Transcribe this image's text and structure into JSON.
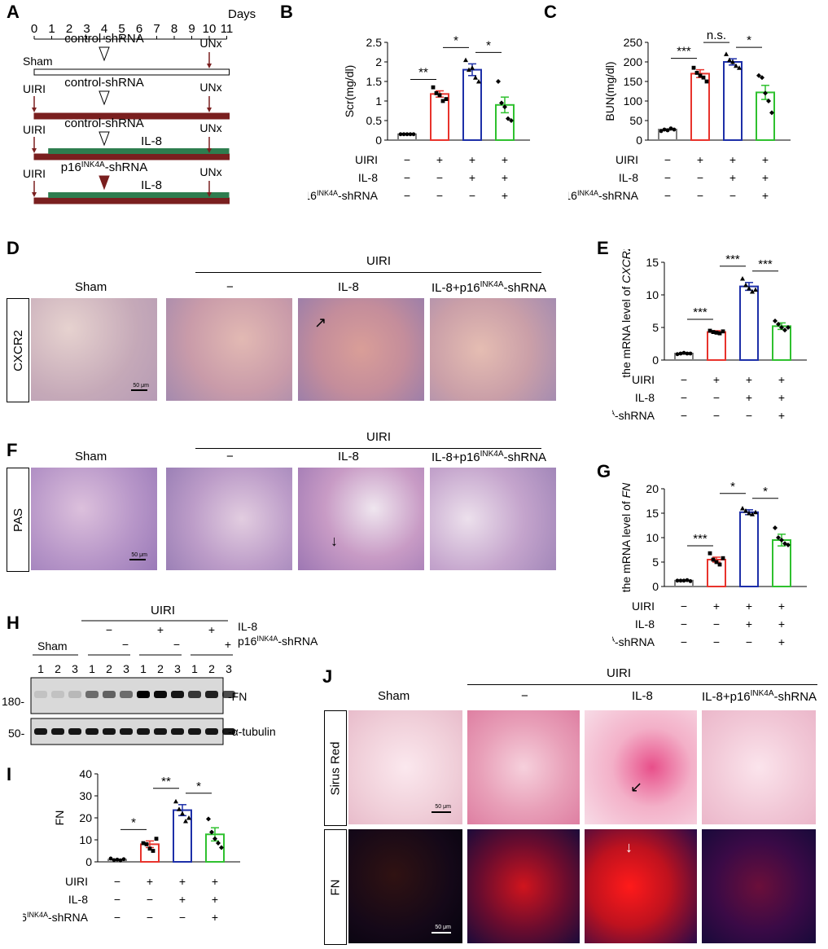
{
  "panels": {
    "A": {
      "letter": "A"
    },
    "B": {
      "letter": "B"
    },
    "C": {
      "letter": "C"
    },
    "D": {
      "letter": "D"
    },
    "E": {
      "letter": "E"
    },
    "F": {
      "letter": "F"
    },
    "G": {
      "letter": "G"
    },
    "H": {
      "letter": "H"
    },
    "I": {
      "letter": "I"
    },
    "J": {
      "letter": "J"
    }
  },
  "timeline": {
    "days_label": "Days",
    "ticks": [
      "0",
      "1",
      "2",
      "3",
      "4",
      "5",
      "6",
      "7",
      "8",
      "9",
      "10",
      "11"
    ],
    "rows": [
      {
        "left": "Sham",
        "mid": "control-shRNA",
        "right": "UNx",
        "extra": ""
      },
      {
        "left": "UIRI",
        "mid": "control-shRNA",
        "right": "UNx",
        "extra": ""
      },
      {
        "left": "UIRI",
        "mid": "control-shRNA",
        "right": "UNx",
        "extra": "IL-8"
      },
      {
        "left": "UIRI",
        "mid": "p16INK4A-shRNA",
        "right": "UNx",
        "extra": "IL-8"
      }
    ],
    "colors": {
      "maroon": "#7a1f1f",
      "green": "#2e7d4f",
      "white": "#ffffff"
    }
  },
  "conditions": {
    "row_labels": [
      "UIRI",
      "IL-8",
      "p16INK4A-shRNA"
    ],
    "signs": [
      [
        "−",
        "−",
        "−"
      ],
      [
        "+",
        "−",
        "−"
      ],
      [
        "+",
        "+",
        "−"
      ],
      [
        "+",
        "+",
        "+"
      ]
    ]
  },
  "series_colors": [
    "#7f7f7f",
    "#e8332c",
    "#1d2fa8",
    "#2fc12f"
  ],
  "chart_data": [
    {
      "id": "B",
      "type": "bar",
      "ylabel": "Scr(mg/dl)",
      "yticks": [
        "0",
        "0.5",
        "1",
        "1.5",
        "2",
        "2.5"
      ],
      "ylim": [
        0,
        2.5
      ],
      "values": [
        0.15,
        1.18,
        1.8,
        0.9
      ],
      "errors": [
        0.01,
        0.08,
        0.15,
        0.2
      ],
      "points": [
        [
          0.15,
          0.15,
          0.15,
          0.15,
          0.15
        ],
        [
          1.35,
          1.2,
          1.15,
          1.0,
          1.05
        ],
        [
          2.05,
          1.8,
          1.85,
          1.6,
          1.5
        ],
        [
          1.5,
          0.95,
          0.85,
          0.55,
          0.5
        ]
      ],
      "sig": [
        {
          "from": 0,
          "to": 1,
          "text": "**"
        },
        {
          "from": 1,
          "to": 2,
          "text": "*"
        },
        {
          "from": 2,
          "to": 3,
          "text": "*"
        }
      ]
    },
    {
      "id": "C",
      "type": "bar",
      "ylabel": "BUN(mg/dl)",
      "yticks": [
        "0",
        "50",
        "100",
        "150",
        "200",
        "250"
      ],
      "ylim": [
        0,
        250
      ],
      "values": [
        27,
        170,
        200,
        122
      ],
      "errors": [
        2,
        10,
        8,
        18
      ],
      "points": [
        [
          23,
          27,
          25,
          30,
          27
        ],
        [
          185,
          172,
          165,
          160,
          150
        ],
        [
          220,
          205,
          200,
          190,
          185
        ],
        [
          165,
          160,
          120,
          100,
          70
        ]
      ],
      "sig": [
        {
          "from": 0,
          "to": 1,
          "text": "***"
        },
        {
          "from": 1,
          "to": 2,
          "text": "n.s."
        },
        {
          "from": 2,
          "to": 3,
          "text": "*"
        }
      ]
    },
    {
      "id": "E",
      "type": "bar",
      "ylabel": "the mRNA level of CXCR2",
      "yticks": [
        "0",
        "5",
        "10",
        "15"
      ],
      "ylim": [
        0,
        15
      ],
      "values": [
        1.0,
        4.3,
        11.3,
        5.2
      ],
      "errors": [
        0.1,
        0.2,
        0.6,
        0.5
      ],
      "points": [
        [
          0.9,
          1.0,
          1.1,
          1.0,
          1.0
        ],
        [
          4.5,
          4.3,
          4.2,
          4.1,
          4.4
        ],
        [
          12.5,
          11.5,
          11.0,
          10.5,
          10.8
        ],
        [
          6.0,
          5.5,
          5.0,
          4.6,
          5.0
        ]
      ],
      "sig": [
        {
          "from": 0,
          "to": 1,
          "text": "***"
        },
        {
          "from": 1,
          "to": 2,
          "text": "***"
        },
        {
          "from": 2,
          "to": 3,
          "text": "***"
        }
      ]
    },
    {
      "id": "G",
      "type": "bar",
      "ylabel": "the mRNA level of FN",
      "yticks": [
        "0",
        "5",
        "10",
        "15",
        "20"
      ],
      "ylim": [
        0,
        20
      ],
      "values": [
        1.2,
        5.5,
        15.2,
        9.5
      ],
      "errors": [
        0.1,
        0.5,
        0.5,
        1.2
      ],
      "points": [
        [
          1.2,
          1.2,
          1.2,
          1.3,
          1.1
        ],
        [
          6.8,
          5.5,
          5.0,
          4.5,
          5.8
        ],
        [
          16.0,
          15.5,
          15.0,
          14.8,
          15.2
        ],
        [
          12.0,
          10.0,
          9.5,
          8.8,
          8.5
        ]
      ],
      "sig": [
        {
          "from": 0,
          "to": 1,
          "text": "***"
        },
        {
          "from": 1,
          "to": 2,
          "text": "*"
        },
        {
          "from": 2,
          "to": 3,
          "text": "*"
        }
      ]
    },
    {
      "id": "I",
      "type": "bar",
      "ylabel": "FN",
      "yticks": [
        "0",
        "10",
        "20",
        "30",
        "40"
      ],
      "ylim": [
        0,
        40
      ],
      "values": [
        1.0,
        8.0,
        23.5,
        12.5
      ],
      "errors": [
        0.2,
        1.5,
        2.5,
        3.0
      ],
      "points": [
        [
          1.5,
          0.8,
          1.0,
          0.7,
          1.2
        ],
        [
          8.5,
          8.0,
          6.0,
          5.0,
          10.5
        ],
        [
          27.5,
          24.0,
          22.0,
          18.5,
          20.0
        ],
        [
          19.5,
          13.5,
          10.5,
          8.5,
          6.5
        ]
      ],
      "sig": [
        {
          "from": 0,
          "to": 1,
          "text": "*"
        },
        {
          "from": 1,
          "to": 2,
          "text": "**"
        },
        {
          "from": 2,
          "to": 3,
          "text": "*"
        }
      ]
    }
  ],
  "histology": {
    "uiri": "UIRI",
    "groups": [
      "Sham",
      "−",
      "IL-8",
      "IL-8+p16INK4A-shRNA"
    ],
    "D_stain": "CXCR2",
    "F_stain": "PAS",
    "J_stains": [
      "Sirus Red",
      "FN"
    ],
    "scale_bar": "50 μm"
  },
  "blot": {
    "uiri": "UIRI",
    "sham": "Sham",
    "il8": "IL-8",
    "shrna": "p16INK4A-shRNA",
    "il8_signs": [
      "−",
      "+",
      "+"
    ],
    "shrna_signs": [
      "−",
      "−",
      "+"
    ],
    "lanes": [
      "1",
      "2",
      "3",
      "1",
      "2",
      "3",
      "1",
      "2",
      "3",
      "1",
      "2",
      "3"
    ],
    "bands": [
      "-FN",
      "-α-tubulin"
    ],
    "markers": [
      "180-",
      "50-"
    ],
    "fn_intensity": [
      0.1,
      0.1,
      0.15,
      0.5,
      0.55,
      0.5,
      1.0,
      0.95,
      0.9,
      0.75,
      0.85,
      0.7
    ]
  }
}
